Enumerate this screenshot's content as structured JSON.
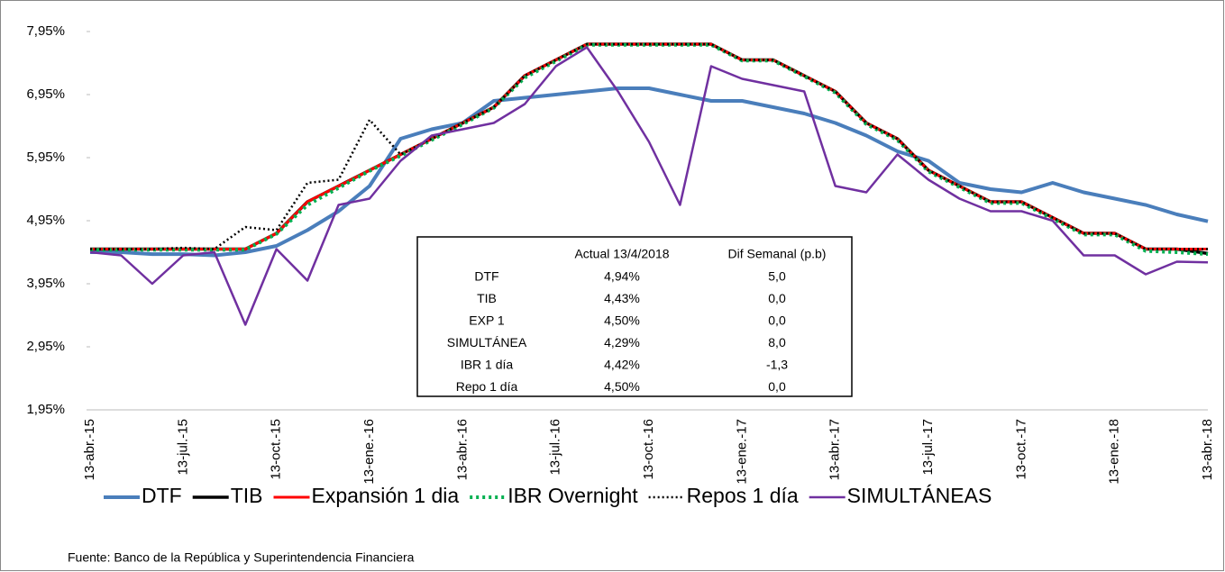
{
  "chart_data": {
    "type": "line",
    "categories": [
      "13-abr.-15",
      null,
      null,
      "13-jul.-15",
      null,
      null,
      "13-oct.-15",
      null,
      null,
      "13-ene.-16",
      null,
      null,
      "13-abr.-16",
      null,
      null,
      "13-jul.-16",
      null,
      null,
      "13-oct.-16",
      null,
      null,
      "13-ene.-17",
      null,
      null,
      "13-abr.-17",
      null,
      null,
      "13-jul.-17",
      null,
      null,
      "13-oct.-17",
      null,
      null,
      "13-ene.-18",
      null,
      null,
      "13-abr.-18"
    ],
    "series": [
      {
        "name": "DTF",
        "color": "#4a7ebb",
        "dash": "solid",
        "values": [
          4.45,
          4.45,
          4.42,
          4.42,
          4.4,
          4.45,
          4.55,
          4.8,
          5.1,
          5.5,
          6.25,
          6.4,
          6.5,
          6.85,
          6.9,
          6.95,
          7.0,
          7.05,
          7.05,
          6.95,
          6.85,
          6.85,
          6.75,
          6.65,
          6.5,
          6.3,
          6.05,
          5.9,
          5.55,
          5.45,
          5.4,
          5.55,
          5.4,
          5.3,
          5.2,
          5.05,
          4.94
        ]
      },
      {
        "name": "TIB",
        "color": "#000000",
        "dash": "solid",
        "values": [
          4.5,
          4.5,
          4.5,
          4.5,
          4.5,
          4.5,
          4.75,
          5.25,
          5.5,
          5.75,
          6.0,
          6.25,
          6.5,
          6.75,
          7.25,
          7.5,
          7.75,
          7.75,
          7.75,
          7.75,
          7.75,
          7.5,
          7.5,
          7.25,
          7.0,
          6.5,
          6.25,
          5.75,
          5.5,
          5.25,
          5.25,
          5.0,
          4.75,
          4.75,
          4.5,
          4.5,
          4.43
        ]
      },
      {
        "name": "Expansión 1 dia",
        "color": "#ff0000",
        "dash": "solid",
        "values": [
          4.5,
          4.5,
          4.5,
          4.5,
          4.5,
          4.5,
          4.75,
          5.25,
          5.5,
          5.75,
          6.0,
          6.25,
          6.5,
          6.75,
          7.25,
          7.5,
          7.75,
          7.75,
          7.75,
          7.75,
          7.75,
          7.5,
          7.5,
          7.25,
          7.0,
          6.5,
          6.25,
          5.75,
          5.5,
          5.25,
          5.25,
          5.0,
          4.75,
          4.75,
          4.5,
          4.5,
          4.5
        ]
      },
      {
        "name": "IBR Overnight",
        "color": "#00b050",
        "dash": "dotted",
        "values": [
          4.49,
          4.49,
          4.49,
          4.49,
          4.49,
          4.49,
          4.74,
          5.2,
          5.47,
          5.74,
          5.98,
          6.23,
          6.48,
          6.74,
          7.22,
          7.48,
          7.74,
          7.74,
          7.74,
          7.74,
          7.74,
          7.49,
          7.49,
          7.24,
          6.98,
          6.48,
          6.23,
          5.73,
          5.48,
          5.23,
          5.23,
          4.98,
          4.73,
          4.73,
          4.47,
          4.45,
          4.42
        ]
      },
      {
        "name": "Repos 1 día",
        "color": "#000000",
        "dash": "dotted",
        "values": [
          4.5,
          4.5,
          4.5,
          4.52,
          4.5,
          4.85,
          4.8,
          5.55,
          5.6,
          6.55,
          6.0,
          6.25,
          6.5,
          6.75,
          7.25,
          7.5,
          7.75,
          7.75,
          7.75,
          7.75,
          7.75,
          7.5,
          7.5,
          7.25,
          7.0,
          6.5,
          6.25,
          5.75,
          5.5,
          5.25,
          5.25,
          5.0,
          4.75,
          4.75,
          4.5,
          4.5,
          4.5
        ]
      },
      {
        "name": "SIMULTÁNEAS",
        "color": "#7030a0",
        "dash": "solid",
        "values": [
          4.45,
          4.4,
          3.95,
          4.4,
          4.45,
          3.3,
          4.5,
          4.0,
          5.2,
          5.3,
          5.9,
          6.3,
          6.4,
          6.5,
          6.8,
          7.4,
          7.7,
          7.0,
          6.2,
          5.2,
          7.4,
          7.2,
          7.1,
          7.0,
          5.5,
          5.4,
          6.0,
          5.6,
          5.3,
          5.1,
          5.1,
          4.95,
          4.4,
          4.4,
          4.1,
          4.3,
          4.29
        ]
      }
    ],
    "ylim": [
      1.95,
      7.95
    ],
    "yticks": [
      {
        "value": 1.95,
        "label": "1,95%"
      },
      {
        "value": 2.95,
        "label": "2,95%"
      },
      {
        "value": 3.95,
        "label": "3,95%"
      },
      {
        "value": 4.95,
        "label": "4,95%"
      },
      {
        "value": 5.95,
        "label": "5,95%"
      },
      {
        "value": 6.95,
        "label": "6,95%"
      },
      {
        "value": 7.95,
        "label": "7,95%"
      }
    ],
    "legend": "bottom",
    "table": {
      "columns": [
        "Actual 13/4/2018",
        "Dif Semanal (p.b)"
      ],
      "rows": [
        [
          "DTF",
          "4,94%",
          "5,0"
        ],
        [
          "TIB",
          "4,43%",
          "0,0"
        ],
        [
          "EXP 1",
          "4,50%",
          "0,0"
        ],
        [
          "SIMULTÁNEA",
          "4,29%",
          "8,0"
        ],
        [
          "IBR 1 día",
          "4,42%",
          "-1,3"
        ],
        [
          "Repo 1 día",
          "4,50%",
          "0,0"
        ]
      ]
    },
    "source": "Fuente: Banco de la República y Superintendencia Financiera"
  }
}
